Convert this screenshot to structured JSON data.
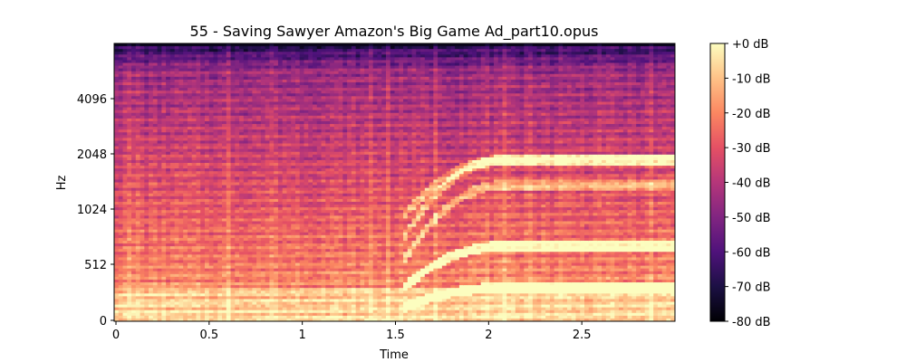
{
  "chart_data": {
    "type": "heatmap",
    "title": "55 - Saving Sawyer  Amazon's Big Game Ad_part10.opus",
    "xlabel": "Time",
    "ylabel": "Hz",
    "xlim": [
      0,
      3.0
    ],
    "y_scale": "log-frequency (mel-like)",
    "x_ticks": [
      {
        "value": 0,
        "label": "0"
      },
      {
        "value": 0.5,
        "label": "0.5"
      },
      {
        "value": 1,
        "label": "1"
      },
      {
        "value": 1.5,
        "label": "1.5"
      },
      {
        "value": 2,
        "label": "2"
      },
      {
        "value": 2.5,
        "label": "2.5"
      }
    ],
    "y_ticks": [
      {
        "value": 0,
        "label": "0"
      },
      {
        "value": 512,
        "label": "512"
      },
      {
        "value": 1024,
        "label": "1024"
      },
      {
        "value": 2048,
        "label": "2048"
      },
      {
        "value": 4096,
        "label": "4096"
      }
    ],
    "colorbar": {
      "colormap": "magma",
      "range_db": [
        -80,
        0
      ],
      "ticks": [
        {
          "value": 0,
          "label": "+0 dB"
        },
        {
          "value": -10,
          "label": "-10 dB"
        },
        {
          "value": -20,
          "label": "-20 dB"
        },
        {
          "value": -30,
          "label": "-30 dB"
        },
        {
          "value": -40,
          "label": "-40 dB"
        },
        {
          "value": -50,
          "label": "-50 dB"
        },
        {
          "value": -60,
          "label": "-60 dB"
        },
        {
          "value": -70,
          "label": "-70 dB"
        },
        {
          "value": -80,
          "label": "-80 dB"
        }
      ]
    }
  }
}
